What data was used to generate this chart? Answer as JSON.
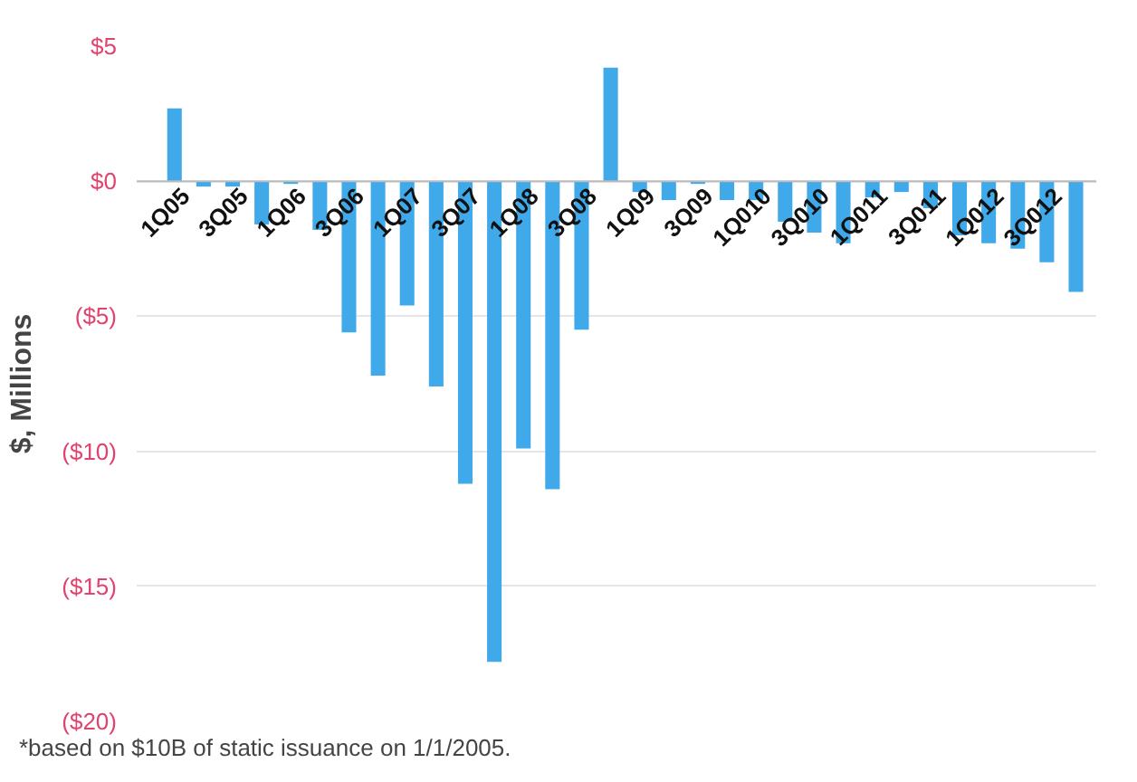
{
  "chart_data": {
    "type": "bar",
    "ylabel": "$, Millions",
    "categories": [
      "1Q05",
      null,
      "3Q05",
      null,
      "1Q06",
      null,
      "3Q06",
      null,
      "1Q07",
      null,
      "3Q07",
      null,
      "1Q08",
      null,
      "3Q08",
      null,
      "1Q09",
      null,
      "3Q09",
      null,
      "1Q010",
      null,
      "3Q010",
      null,
      "1Q011",
      null,
      "3Q011",
      null,
      "1Q012",
      null,
      "3Q012",
      null
    ],
    "values": [
      2.7,
      -0.2,
      -0.2,
      -1.6,
      -0.1,
      -1.8,
      -5.6,
      -7.2,
      -4.6,
      -7.6,
      -11.2,
      -17.8,
      -9.9,
      -11.4,
      -5.5,
      4.2,
      -0.4,
      -0.7,
      -0.1,
      -0.7,
      -0.7,
      -1.5,
      -1.9,
      -2.3,
      -0.6,
      -0.4,
      -1.0,
      -2.0,
      -2.3,
      -2.5,
      -3.0,
      -4.1
    ],
    "color": "#3fa9ea",
    "ylim": [
      -20,
      5
    ],
    "yticks": [
      {
        "value": 5,
        "label": "$5"
      },
      {
        "value": 0,
        "label": "$0"
      },
      {
        "value": -5,
        "label": "($5)"
      },
      {
        "value": -10,
        "label": "($10)"
      },
      {
        "value": -15,
        "label": "($15)"
      },
      {
        "value": -20,
        "label": "($20)"
      }
    ],
    "grid": "y",
    "annotations": [
      "*based on $10B of static issuance on 1/1/2005."
    ]
  }
}
